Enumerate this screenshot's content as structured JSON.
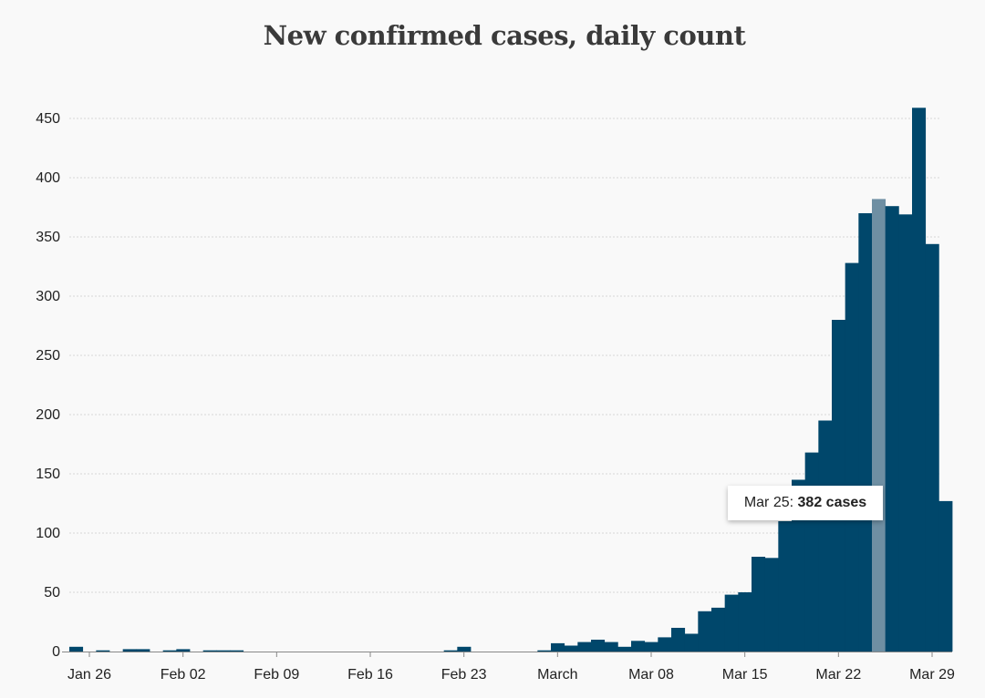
{
  "chart_data": {
    "type": "bar",
    "title": "New confirmed cases, daily count",
    "xlabel": "",
    "ylabel": "",
    "ylim": [
      0,
      475
    ],
    "yticks": [
      0,
      50,
      100,
      150,
      200,
      250,
      300,
      350,
      400,
      450
    ],
    "x_start": "Jan 25",
    "x_tick_labels": [
      {
        "label": "Jan 26",
        "day": 1
      },
      {
        "label": "Feb 02",
        "day": 8
      },
      {
        "label": "Feb 09",
        "day": 15
      },
      {
        "label": "Feb 16",
        "day": 22
      },
      {
        "label": "Feb 23",
        "day": 29
      },
      {
        "label": "March",
        "day": 36
      },
      {
        "label": "Mar 08",
        "day": 43
      },
      {
        "label": "Mar 15",
        "day": 50
      },
      {
        "label": "Mar 22",
        "day": 57
      },
      {
        "label": "Mar 29",
        "day": 64
      }
    ],
    "grid": true,
    "series": [
      {
        "values": [
          4,
          0,
          1,
          0,
          2,
          2,
          0,
          1,
          2,
          0,
          1,
          1,
          1,
          0,
          0,
          0,
          0,
          0,
          0,
          0,
          0,
          0,
          0,
          0,
          0,
          0,
          0,
          0,
          1,
          4,
          0,
          0,
          0,
          0,
          0,
          1,
          7,
          5,
          8,
          10,
          8,
          4,
          9,
          8,
          12,
          20,
          15,
          34,
          37,
          48,
          50,
          80,
          79,
          110,
          145,
          168,
          195,
          280,
          328,
          370,
          382,
          376,
          369,
          459,
          344,
          127
        ]
      }
    ],
    "highlight": {
      "index": 60,
      "color": "#6e8fa3"
    },
    "bar_color": "#00476b"
  },
  "tooltip": {
    "date": "Mar 25:",
    "value": "382 cases"
  }
}
